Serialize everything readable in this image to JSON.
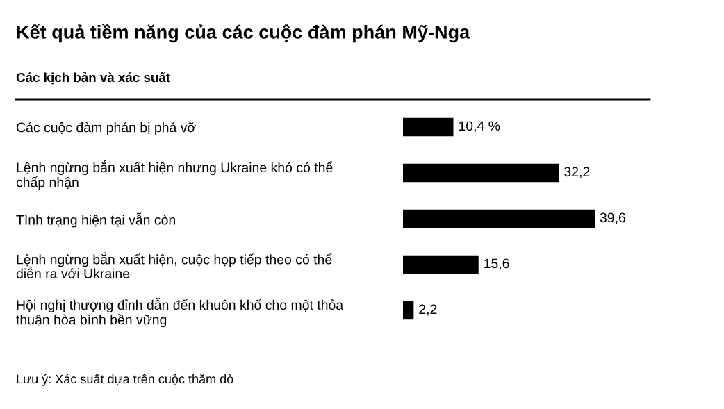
{
  "chart_data": {
    "type": "bar",
    "orientation": "horizontal",
    "title": "Kết quả tiềm năng của các cuộc đàm phán Mỹ-Nga",
    "subtitle": "Các kịch bản và xác suất",
    "categories": [
      "Các cuộc đàm phán bị phá vỡ",
      "Lệnh ngừng bắn xuất hiện nhưng Ukraine khó có thể\nchấp nhận",
      "Tình trạng hiện tại vẫn còn",
      "Lệnh ngừng bắn xuất hiện, cuộc họp tiếp theo có thể\ndiễn ra với Ukraine",
      "Hội nghị thượng đỉnh dẫn đến khuôn khổ cho một thỏa\nthuận hòa bình bền vững"
    ],
    "values": [
      10.4,
      32.2,
      39.6,
      15.6,
      2.2
    ],
    "value_labels": [
      "10,4 %",
      "32,2",
      "39,6",
      "15,6",
      "2,2"
    ],
    "color": "#000000",
    "annotations": [
      "Lưu ý: Xác suất dựa trên cuộc thăm dò"
    ]
  }
}
